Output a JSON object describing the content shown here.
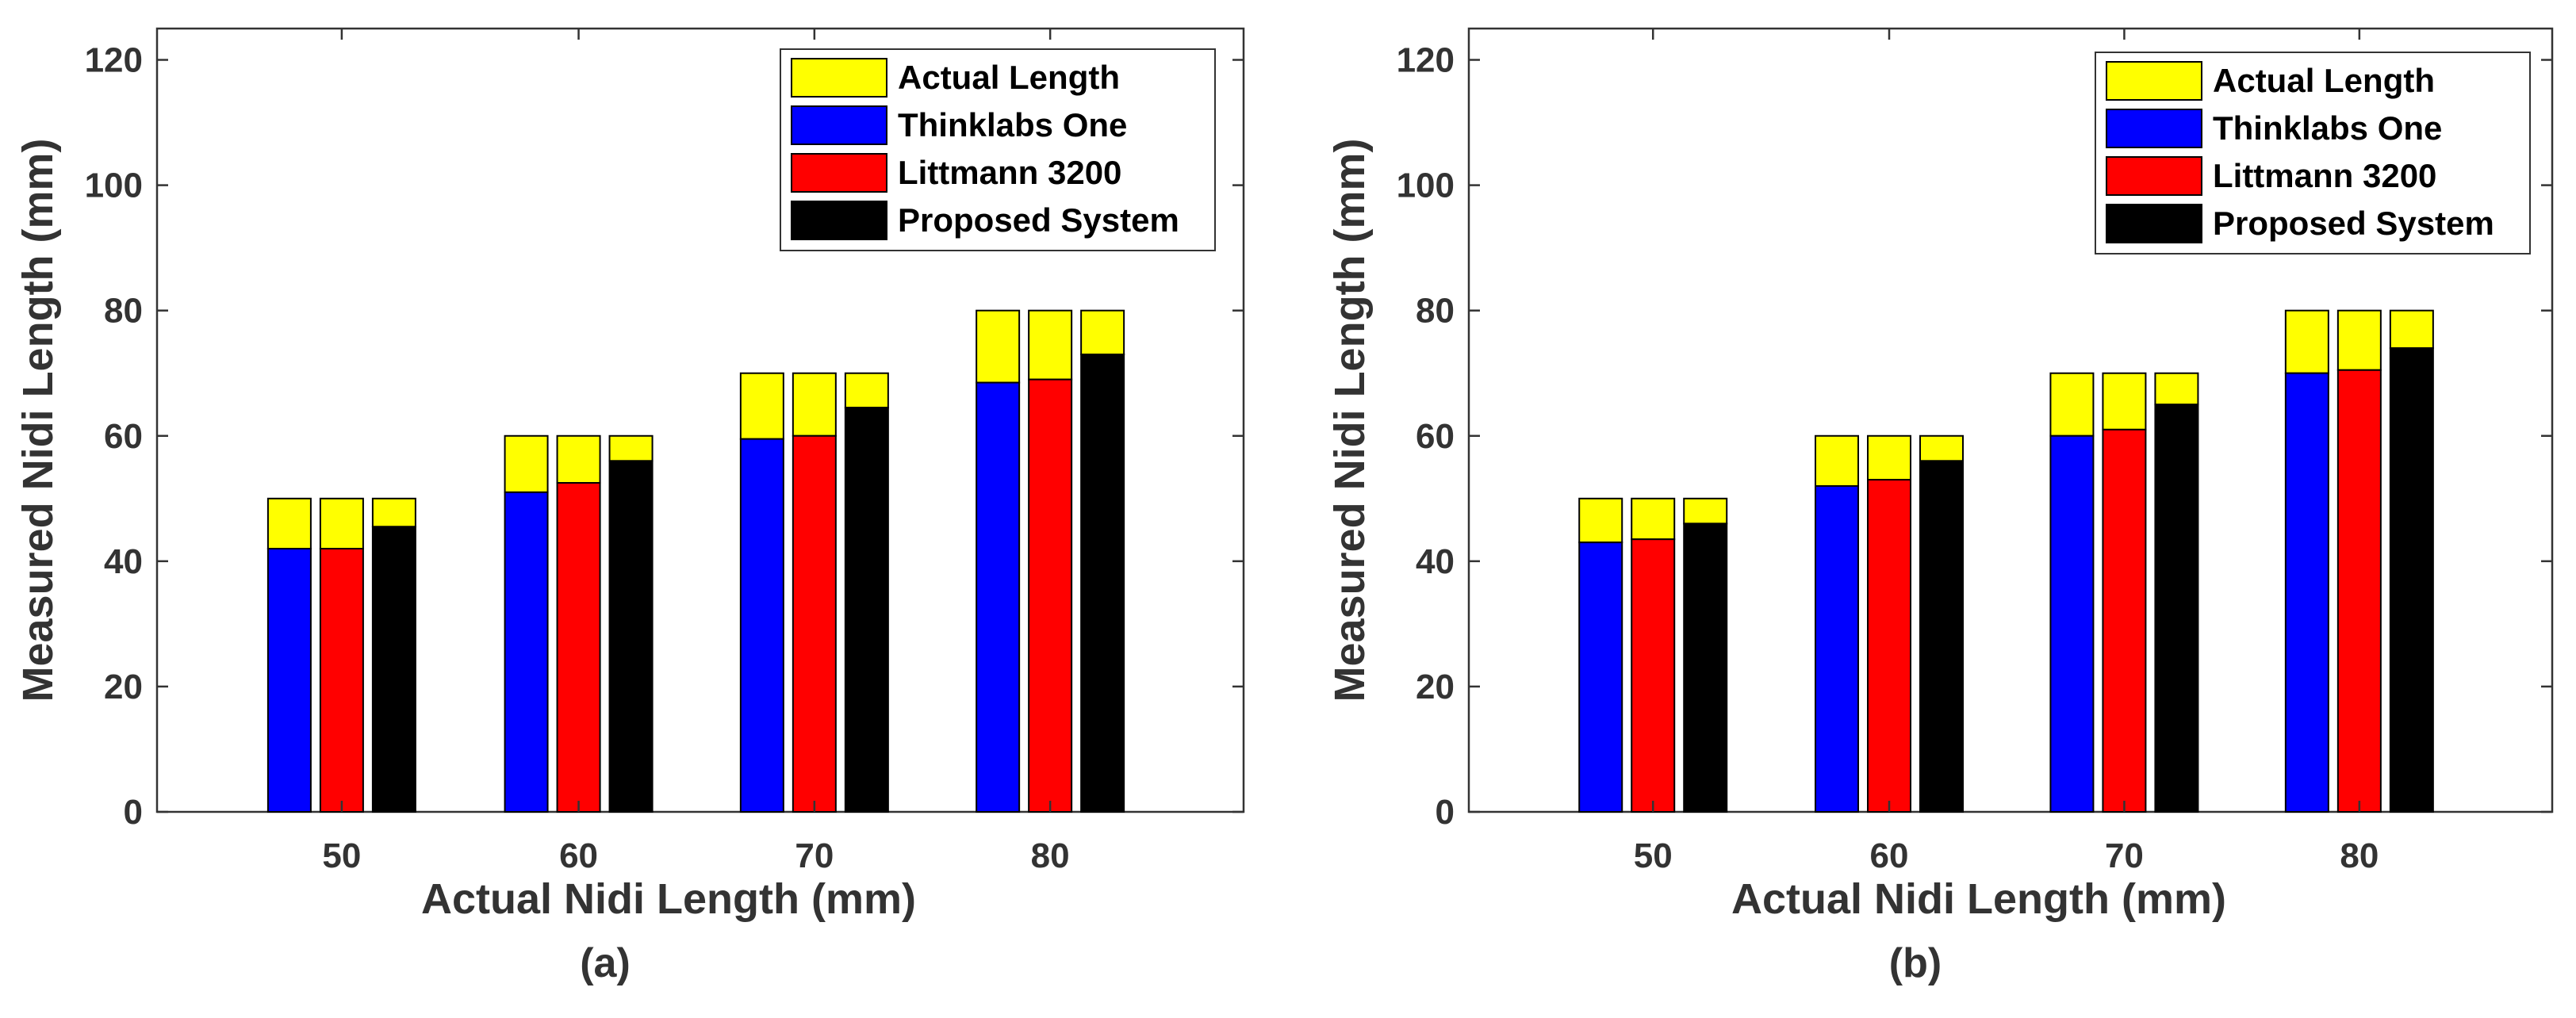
{
  "chart_data": [
    {
      "type": "bar",
      "subtitle": "(a)",
      "xlabel": "Actual Nidi Length (mm)",
      "ylabel": "Measured Nidi Length (mm)",
      "ylim": [
        0,
        125
      ],
      "yticks": [
        0,
        20,
        40,
        60,
        80,
        100,
        120
      ],
      "categories": [
        "50",
        "60",
        "70",
        "80"
      ],
      "legend_position": "top-right",
      "legend": [
        "Actual Length",
        "Thinklabs One",
        "Littmann 3200",
        "Proposed System"
      ],
      "actual": [
        50,
        60,
        70,
        80
      ],
      "series": [
        {
          "name": "Thinklabs One",
          "color": "#0000ff",
          "values": [
            42,
            51,
            59.5,
            68.5
          ]
        },
        {
          "name": "Littmann 3200",
          "color": "#ff0000",
          "values": [
            42,
            52.5,
            60,
            69
          ]
        },
        {
          "name": "Proposed System",
          "color": "#000000",
          "values": [
            45.5,
            56,
            64.5,
            73
          ]
        }
      ],
      "actual_color": "#ffff00"
    },
    {
      "type": "bar",
      "subtitle": "(b)",
      "xlabel": "Actual Nidi Length (mm)",
      "ylabel": "Measured Nidi Length (mm)",
      "ylim": [
        0,
        125
      ],
      "yticks": [
        0,
        20,
        40,
        60,
        80,
        100,
        120
      ],
      "categories": [
        "50",
        "60",
        "70",
        "80"
      ],
      "legend_position": "top-right",
      "legend": [
        "Actual Length",
        "Thinklabs One",
        "Littmann 3200",
        "Proposed System"
      ],
      "actual": [
        50,
        60,
        70,
        80
      ],
      "series": [
        {
          "name": "Thinklabs One",
          "color": "#0000ff",
          "values": [
            43,
            52,
            60,
            70
          ]
        },
        {
          "name": "Littmann 3200",
          "color": "#ff0000",
          "values": [
            43.5,
            53,
            61,
            70.5
          ]
        },
        {
          "name": "Proposed System",
          "color": "#000000",
          "values": [
            46,
            56,
            65,
            74
          ]
        }
      ],
      "actual_color": "#ffff00"
    }
  ]
}
